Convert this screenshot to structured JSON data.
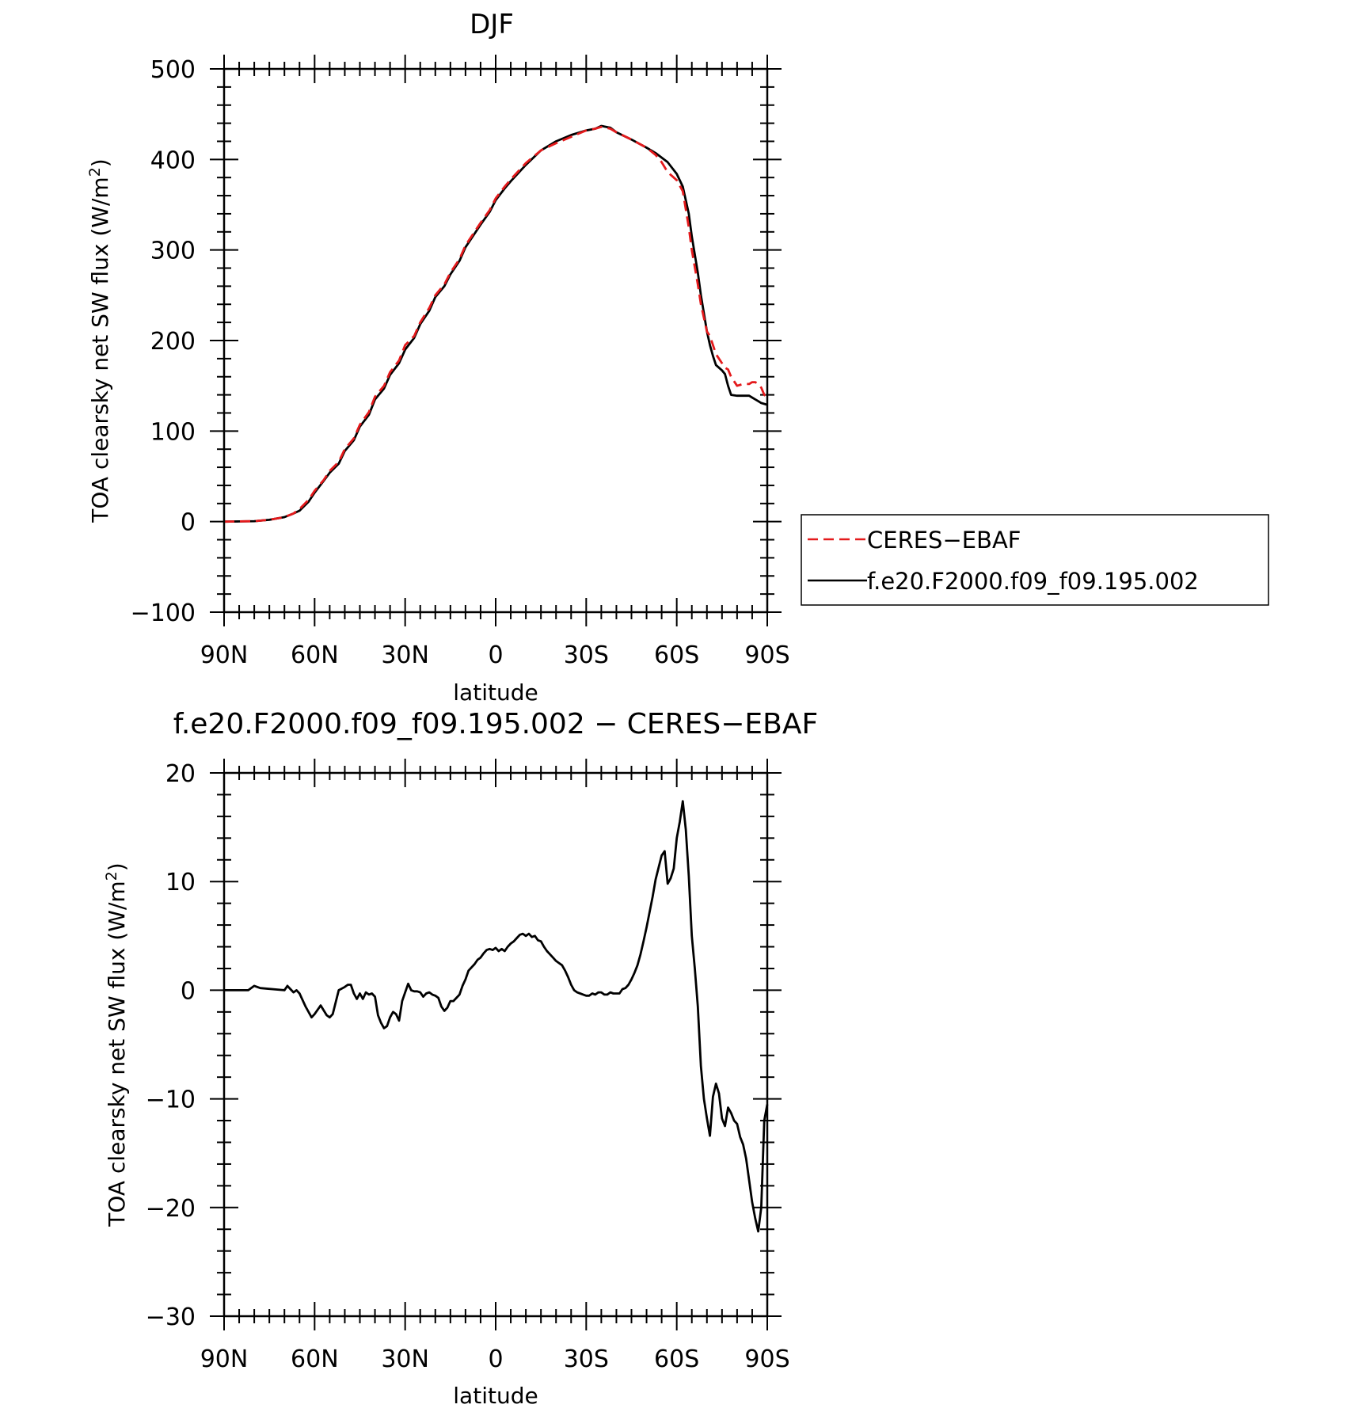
{
  "chart_data": [
    {
      "type": "line",
      "title": "DJF",
      "xlabel": "latitude",
      "ylabel": "TOA clearsky net SW flux (W/m²)",
      "ylabel_main": "TOA clearsky net SW flux (W/m",
      "ylabel_sup": "2",
      "ylabel_close": ")",
      "xlim": [
        90,
        -90
      ],
      "ylim": [
        -100,
        500
      ],
      "x_ticks": [
        90,
        60,
        30,
        0,
        -30,
        -60,
        -90
      ],
      "x_tick_labels": [
        "90N",
        "60N",
        "30N",
        "0",
        "30S",
        "60S",
        "90S"
      ],
      "y_ticks": [
        -100,
        0,
        100,
        200,
        300,
        400,
        500
      ],
      "y_tick_labels": [
        "−100",
        "0",
        "100",
        "200",
        "300",
        "400",
        "500"
      ],
      "legend_position": "outside-right",
      "series": [
        {
          "name": "CERES−EBAF",
          "color": "#e41a1c",
          "dash": "dashed",
          "x": [
            90,
            80,
            75,
            70,
            67,
            65,
            62,
            60,
            57,
            55,
            52,
            50,
            47,
            45,
            42,
            40,
            37,
            35,
            32,
            30,
            27,
            25,
            22,
            20,
            17,
            15,
            12,
            10,
            7,
            5,
            2,
            0,
            -3,
            -5,
            -10,
            -15,
            -20,
            -25,
            -30,
            -33,
            -35,
            -38,
            -40,
            -45,
            -50,
            -53,
            -55,
            -57,
            -60,
            -62,
            -64,
            -65,
            -67,
            -68,
            -70,
            -71,
            -72,
            -73,
            -75,
            -76,
            -77,
            -78,
            -80,
            -82,
            -84,
            -85,
            -86,
            -87,
            -88,
            -89,
            -90
          ],
          "y": [
            0,
            0.5,
            2,
            5,
            9,
            14,
            24,
            34,
            46,
            56,
            66,
            80,
            92,
            107,
            121,
            138,
            150,
            165,
            178,
            195,
            205,
            220,
            236,
            250,
            262,
            275,
            290,
            305,
            320,
            330,
            344,
            357,
            370,
            378,
            396,
            410,
            418,
            425,
            432,
            434,
            436,
            434,
            430,
            422,
            413,
            405,
            397,
            386,
            377,
            365,
            325,
            300,
            262,
            240,
            210,
            205,
            195,
            185,
            175,
            170,
            168,
            160,
            150,
            152,
            152,
            154,
            154,
            152,
            148,
            140,
            137
          ]
        },
        {
          "name": "f.e20.F2000.f09_f09.195.002",
          "color": "#000000",
          "dash": "solid",
          "x": [
            90,
            80,
            75,
            70,
            67,
            65,
            62,
            60,
            57,
            55,
            52,
            50,
            47,
            45,
            42,
            40,
            37,
            35,
            32,
            30,
            27,
            25,
            22,
            20,
            17,
            15,
            12,
            10,
            7,
            5,
            2,
            0,
            -3,
            -5,
            -10,
            -15,
            -20,
            -25,
            -30,
            -33,
            -35,
            -38,
            -40,
            -45,
            -50,
            -53,
            -55,
            -57,
            -60,
            -62,
            -64,
            -65,
            -67,
            -68,
            -70,
            -71,
            -72,
            -73,
            -75,
            -76,
            -77,
            -78,
            -80,
            -82,
            -84,
            -85,
            -86,
            -87,
            -88,
            -89,
            -90
          ],
          "y": [
            0,
            0.5,
            2,
            5,
            9,
            12,
            22,
            32,
            45,
            54,
            64,
            78,
            90,
            105,
            118,
            135,
            147,
            162,
            175,
            190,
            203,
            218,
            233,
            248,
            260,
            273,
            288,
            303,
            318,
            328,
            342,
            355,
            368,
            376,
            394,
            410,
            420,
            427,
            432,
            434,
            437,
            435,
            430,
            422,
            413,
            407,
            402,
            397,
            384,
            370,
            340,
            315,
            275,
            250,
            210,
            195,
            183,
            173,
            167,
            163,
            150,
            140,
            139,
            139,
            139,
            137,
            135,
            133,
            131,
            130,
            129
          ]
        }
      ]
    },
    {
      "type": "line",
      "title": "f.e20.F2000.f09_f09.195.002 − CERES−EBAF",
      "xlabel": "latitude",
      "ylabel": "TOA clearsky net SW flux (W/m²)",
      "ylabel_main": "TOA clearsky net SW flux (W/m",
      "ylabel_sup": "2",
      "ylabel_close": ")",
      "xlim": [
        90,
        -90
      ],
      "ylim": [
        -30,
        20
      ],
      "x_ticks": [
        90,
        60,
        30,
        0,
        -30,
        -60,
        -90
      ],
      "x_tick_labels": [
        "90N",
        "60N",
        "30N",
        "0",
        "30S",
        "60S",
        "90S"
      ],
      "y_ticks": [
        -30,
        -20,
        -10,
        0,
        10,
        20
      ],
      "y_tick_labels": [
        "−30",
        "−20",
        "−10",
        "0",
        "10",
        "20"
      ],
      "series": [
        {
          "color": "#000000",
          "dash": "solid",
          "x": [
            90,
            82,
            80,
            78,
            70,
            69,
            68,
            67,
            66,
            65,
            63,
            61,
            60,
            58,
            56,
            55,
            54,
            52,
            50,
            49,
            48,
            47,
            46,
            45,
            44,
            43,
            42,
            41,
            40,
            39,
            38,
            37,
            36,
            35,
            34,
            33,
            32,
            31,
            30,
            29,
            28,
            27,
            26,
            25,
            24,
            23,
            22,
            21,
            20,
            19,
            18,
            17,
            16,
            15,
            14,
            13,
            12,
            11,
            10,
            9,
            8,
            7,
            6,
            5,
            4,
            3,
            2,
            1,
            0,
            -1,
            -2,
            -3,
            -4,
            -5,
            -6,
            -7,
            -8,
            -9,
            -10,
            -11,
            -12,
            -13,
            -14,
            -15,
            -16,
            -17,
            -18,
            -19,
            -20,
            -21,
            -22,
            -23,
            -24,
            -25,
            -26,
            -27,
            -28,
            -29,
            -30,
            -31,
            -32,
            -33,
            -34,
            -35,
            -36,
            -37,
            -38,
            -39,
            -40,
            -41,
            -42,
            -43,
            -44,
            -45,
            -46,
            -47,
            -48,
            -49,
            -50,
            -51,
            -52,
            -53,
            -54,
            -55,
            -56,
            -57,
            -58,
            -59,
            -60,
            -61,
            -62,
            -63,
            -64,
            -65,
            -66,
            -67,
            -68,
            -69,
            -70,
            -71,
            -72,
            -73,
            -74,
            -75,
            -76,
            -77,
            -78,
            -79,
            -80,
            -81,
            -82,
            -83,
            -84,
            -85,
            -86,
            -87,
            -88,
            -89,
            -90
          ],
          "y": [
            0,
            0,
            0.4,
            0.2,
            0,
            0.4,
            0.1,
            -0.2,
            0,
            -0.3,
            -1.5,
            -2.5,
            -2.2,
            -1.4,
            -2.3,
            -2.5,
            -2.2,
            0,
            0.3,
            0.5,
            0.5,
            -0.3,
            -0.8,
            -0.3,
            -0.8,
            -0.2,
            -0.4,
            -0.3,
            -0.6,
            -2.3,
            -3.0,
            -3.5,
            -3.3,
            -2.5,
            -2.0,
            -2.2,
            -2.8,
            -1.0,
            -0.2,
            0.6,
            0,
            -0.1,
            -0.1,
            -0.2,
            -0.6,
            -0.3,
            -0.2,
            -0.4,
            -0.5,
            -0.7,
            -1.5,
            -1.9,
            -1.6,
            -1.0,
            -1.0,
            -0.7,
            -0.4,
            0.4,
            1.0,
            1.8,
            2.1,
            2.4,
            2.8,
            3.0,
            3.4,
            3.7,
            3.8,
            3.7,
            3.9,
            3.6,
            3.8,
            3.6,
            4.0,
            4.3,
            4.5,
            4.8,
            5.1,
            5.2,
            5.0,
            5.2,
            4.9,
            5.0,
            4.6,
            4.5,
            4.0,
            3.6,
            3.3,
            3.0,
            2.7,
            2.5,
            2.3,
            1.8,
            1.2,
            0.5,
            0.0,
            -0.2,
            -0.3,
            -0.4,
            -0.5,
            -0.5,
            -0.3,
            -0.4,
            -0.2,
            -0.2,
            -0.4,
            -0.4,
            -0.2,
            -0.3,
            -0.3,
            -0.3,
            0.1,
            0.2,
            0.5,
            1.0,
            1.6,
            2.3,
            3.3,
            4.5,
            5.8,
            7.2,
            8.6,
            10.2,
            11.3,
            12.4,
            12.8,
            9.8,
            10.3,
            11.2,
            14.0,
            15.5,
            17.4,
            14.8,
            10.5,
            5.0,
            2.0,
            -1.5,
            -7.0,
            -10.0,
            -11.8,
            -13.4,
            -9.8,
            -8.6,
            -9.5,
            -11.8,
            -12.5,
            -10.8,
            -11.3,
            -12.0,
            -12.3,
            -13.5,
            -14.2,
            -15.5,
            -17.5,
            -19.5,
            -21.0,
            -22.2,
            -20.0,
            -12.0,
            -10.5
          ]
        }
      ]
    }
  ]
}
